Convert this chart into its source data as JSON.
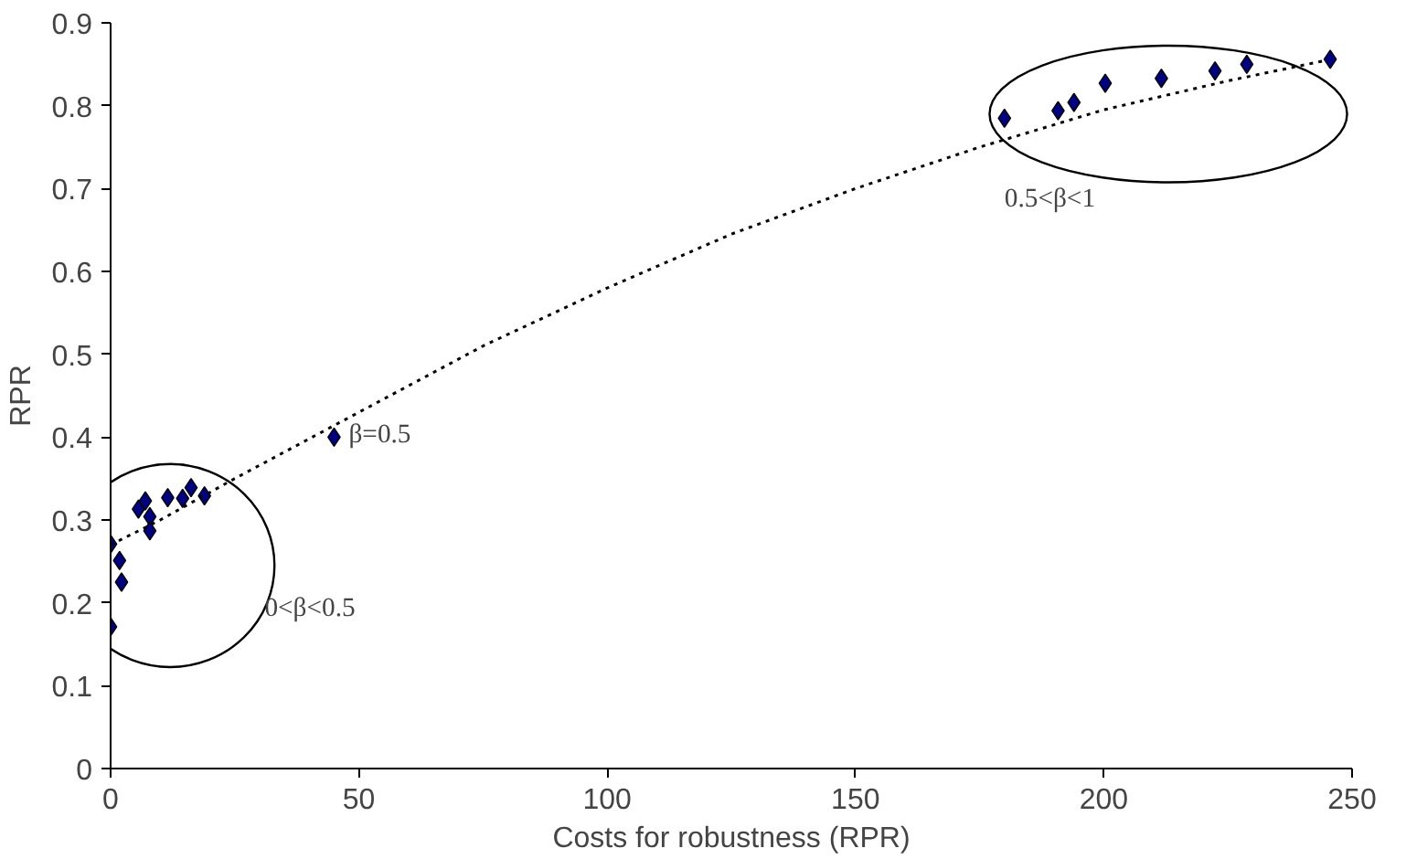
{
  "chart_data": {
    "type": "scatter",
    "xlabel": "Costs for robustness (RPR)",
    "ylabel": "RPR",
    "xlim": [
      0,
      250
    ],
    "ylim": [
      0,
      0.9
    ],
    "xticks": [
      0,
      50,
      100,
      150,
      200,
      250
    ],
    "yticks": [
      0,
      0.1,
      0.2,
      0.3,
      0.4,
      0.5,
      0.6,
      0.7,
      0.8,
      0.9
    ],
    "grid": false,
    "marker": "diamond",
    "series": [
      {
        "color": "#000080",
        "x": [
          0,
          0,
          1.8,
          2.2,
          5.6,
          7.0,
          7.9,
          7.9,
          11.5,
          14.5,
          16.2,
          18.9,
          45,
          180,
          190.8,
          194,
          200.3,
          211.6,
          222.4,
          228.8,
          245.6
        ],
        "values": [
          0.171,
          0.271,
          0.251,
          0.225,
          0.313,
          0.323,
          0.304,
          0.287,
          0.327,
          0.326,
          0.339,
          0.329,
          0.4,
          0.785,
          0.794,
          0.804,
          0.827,
          0.833,
          0.842,
          0.85,
          0.856
        ]
      },
      {
        "type": "line",
        "marker": "none",
        "color": "#000000",
        "line_style": "dotted",
        "x": [
          0,
          10,
          25,
          50,
          75,
          100,
          125,
          150,
          175,
          200,
          225,
          245
        ],
        "values": [
          0.27,
          0.3,
          0.35,
          0.43,
          0.51,
          0.58,
          0.645,
          0.7,
          0.75,
          0.795,
          0.83,
          0.855
        ]
      }
    ],
    "annotations": [
      {
        "text": "β=0.5",
        "x": 45,
        "y": 0.4
      },
      "0<β<0.5",
      "0.5<β<1"
    ]
  }
}
